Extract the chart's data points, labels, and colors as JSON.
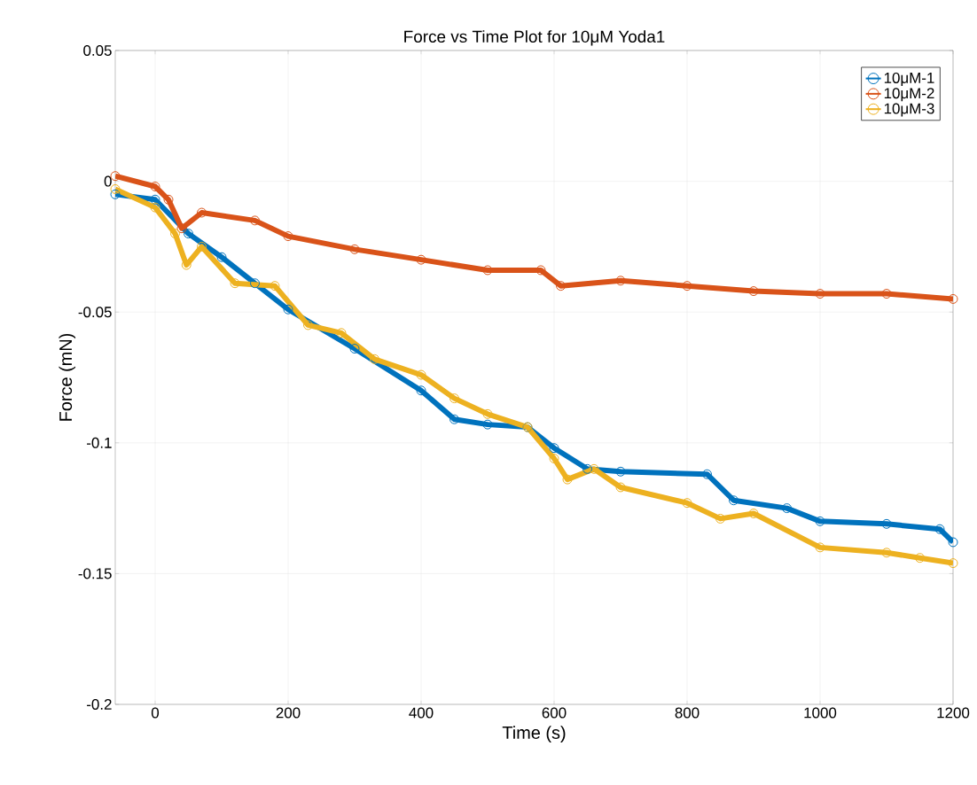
{
  "chart_data": {
    "type": "line",
    "title": "Force vs Time Plot for 10μM Yoda1",
    "xlabel": "Time (s)",
    "ylabel": "Force (mN)",
    "xlim": [
      -60,
      1200
    ],
    "ylim": [
      -0.2,
      0.05
    ],
    "xticks": [
      0,
      200,
      400,
      600,
      800,
      1000,
      1200
    ],
    "yticks": [
      -0.2,
      -0.15,
      -0.1,
      -0.05,
      0,
      0.05
    ],
    "grid": true,
    "legend": "top right",
    "marker": "circle",
    "line_style": "solid",
    "series": [
      {
        "name": "10μM-1",
        "color": "#0072bd",
        "x": [
          -60,
          0,
          50,
          100,
          150,
          200,
          300,
          400,
          450,
          500,
          560,
          600,
          650,
          700,
          830,
          870,
          950,
          1000,
          1100,
          1180,
          1200
        ],
        "values": [
          -0.005,
          -0.007,
          -0.02,
          -0.029,
          -0.039,
          -0.049,
          -0.064,
          -0.08,
          -0.091,
          -0.093,
          -0.094,
          -0.102,
          -0.11,
          -0.111,
          -0.112,
          -0.122,
          -0.125,
          -0.13,
          -0.131,
          -0.133,
          -0.138
        ]
      },
      {
        "name": "10μM-2",
        "color": "#d95319",
        "x": [
          -60,
          0,
          20,
          40,
          70,
          150,
          200,
          300,
          400,
          500,
          580,
          610,
          700,
          800,
          900,
          1000,
          1100,
          1200
        ],
        "values": [
          0.002,
          -0.002,
          -0.007,
          -0.018,
          -0.012,
          -0.015,
          -0.021,
          -0.026,
          -0.03,
          -0.034,
          -0.034,
          -0.04,
          -0.038,
          -0.04,
          -0.042,
          -0.043,
          -0.043,
          -0.045
        ]
      },
      {
        "name": "10μM-3",
        "color": "#edb120",
        "x": [
          -60,
          0,
          30,
          47,
          70,
          120,
          180,
          230,
          280,
          330,
          400,
          450,
          500,
          560,
          600,
          620,
          660,
          700,
          800,
          850,
          900,
          1000,
          1100,
          1150,
          1200
        ],
        "values": [
          -0.003,
          -0.01,
          -0.02,
          -0.032,
          -0.025,
          -0.039,
          -0.04,
          -0.055,
          -0.058,
          -0.068,
          -0.074,
          -0.083,
          -0.089,
          -0.094,
          -0.106,
          -0.114,
          -0.11,
          -0.117,
          -0.123,
          -0.129,
          -0.127,
          -0.14,
          -0.142,
          -0.144,
          -0.146
        ]
      }
    ]
  }
}
